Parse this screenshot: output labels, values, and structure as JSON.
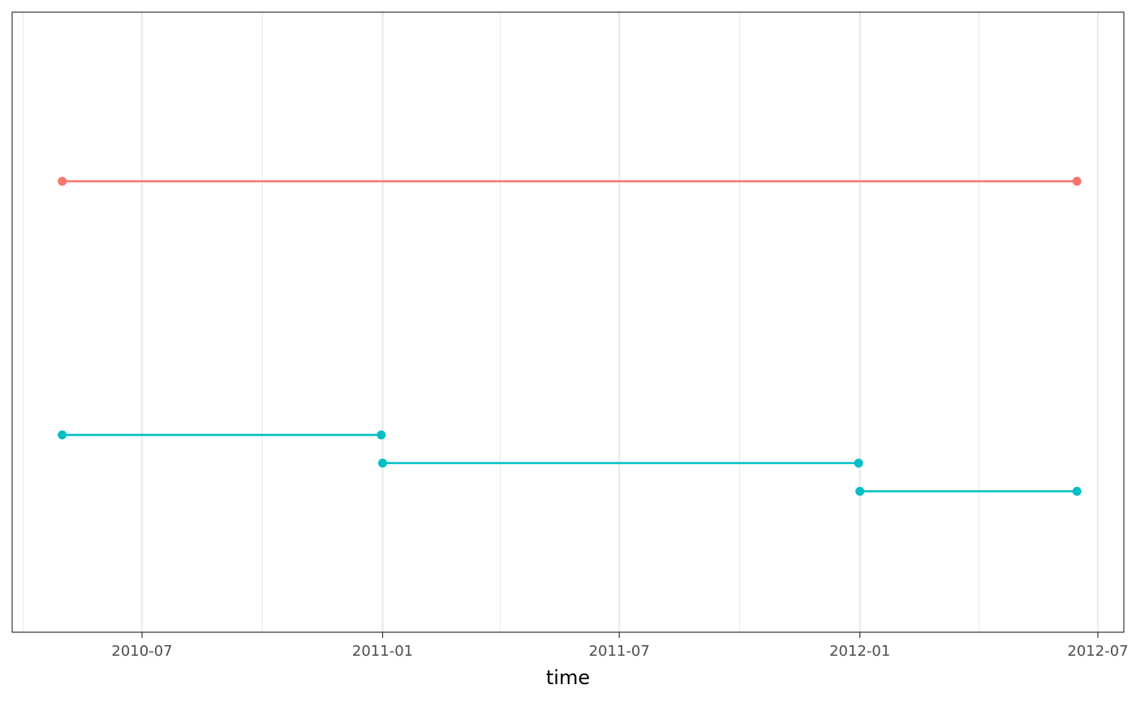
{
  "chart_data": {
    "type": "line",
    "xlabel": "time",
    "ylabel": "",
    "grid": true,
    "x_tick_labels": [
      "2010-07",
      "2011-01",
      "2011-07",
      "2012-01",
      "2012-07"
    ],
    "x_ticks": [
      "2010-07-01",
      "2011-01-01",
      "2011-07-01",
      "2012-01-01",
      "2012-07-01"
    ],
    "x_minor_ticks": [
      "2010-04-01",
      "2010-10-01",
      "2011-04-01",
      "2011-10-01",
      "2012-04-01"
    ],
    "xlim": [
      "2010-03-15",
      "2012-07-15"
    ],
    "ylim": [
      0.4,
      2.6
    ],
    "series": [
      {
        "color": "#F8766D",
        "segments": [
          {
            "start": "2010-05-01",
            "end": "2012-06-15",
            "y": 2.0
          }
        ]
      },
      {
        "color": "#00BFC4",
        "segments": [
          {
            "start": "2010-05-01",
            "end": "2010-12-31",
            "y": 1.1
          },
          {
            "start": "2011-01-01",
            "end": "2011-12-31",
            "y": 1.0
          },
          {
            "start": "2012-01-01",
            "end": "2012-06-15",
            "y": 0.9
          }
        ]
      }
    ]
  }
}
